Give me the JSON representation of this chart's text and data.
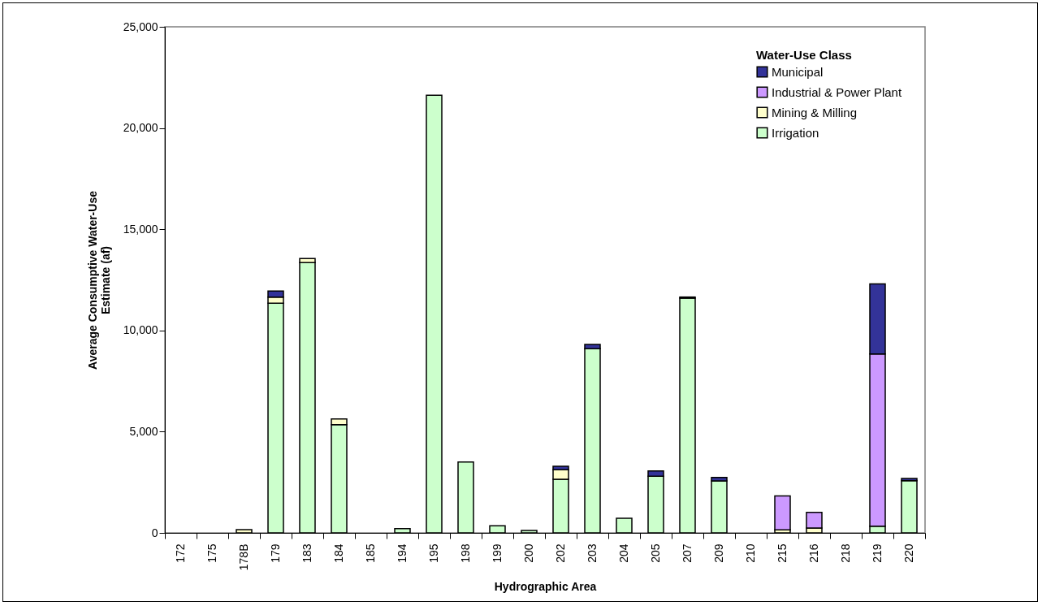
{
  "chart_data": {
    "type": "bar",
    "stacked": true,
    "xlabel": "Hydrographic Area",
    "ylabel": "Average Consumptive Water-Use\nEstimate (af)",
    "legend_title": "Water-Use Class",
    "legend": "top right",
    "grid": false,
    "categories": [
      "172",
      "175",
      "178B",
      "179",
      "183",
      "184",
      "185",
      "194",
      "195",
      "198",
      "199",
      "200",
      "202",
      "203",
      "204",
      "205",
      "207",
      "209",
      "210",
      "215",
      "216",
      "218",
      "219",
      "220"
    ],
    "ylim": [
      0,
      25000
    ],
    "yticks": [
      0,
      {
        "value": 5000,
        "label": "5,000"
      },
      {
        "value": 10000,
        "label": "10,000"
      },
      {
        "value": 15000,
        "label": "15,000"
      },
      {
        "value": 20000,
        "label": "20,000"
      },
      {
        "value": 25000,
        "label": "25,000"
      }
    ],
    "series": [
      {
        "name": "Irrigation",
        "color": "#ccffcc",
        "values": [
          0,
          0,
          0,
          11350,
          13350,
          5350,
          0,
          210,
          21620,
          3500,
          350,
          120,
          2650,
          9100,
          720,
          2800,
          11600,
          2570,
          0,
          0,
          0,
          0,
          330,
          2580
        ]
      },
      {
        "name": "Mining & Milling",
        "color": "#ffffcc",
        "values": [
          0,
          0,
          160,
          300,
          200,
          280,
          0,
          0,
          0,
          0,
          0,
          0,
          470,
          0,
          0,
          0,
          0,
          0,
          0,
          150,
          240,
          0,
          0,
          0
        ]
      },
      {
        "name": "Industrial & Power Plant",
        "color": "#cc99ff",
        "values": [
          0,
          0,
          0,
          0,
          0,
          0,
          0,
          0,
          0,
          0,
          0,
          0,
          0,
          0,
          0,
          0,
          0,
          0,
          0,
          1680,
          770,
          0,
          8510,
          0
        ]
      },
      {
        "name": "Municipal",
        "color": "#333399",
        "values": [
          0,
          0,
          0,
          300,
          0,
          0,
          0,
          0,
          0,
          0,
          0,
          0,
          170,
          210,
          0,
          260,
          50,
          170,
          0,
          0,
          0,
          0,
          3460,
          110
        ]
      }
    ]
  }
}
